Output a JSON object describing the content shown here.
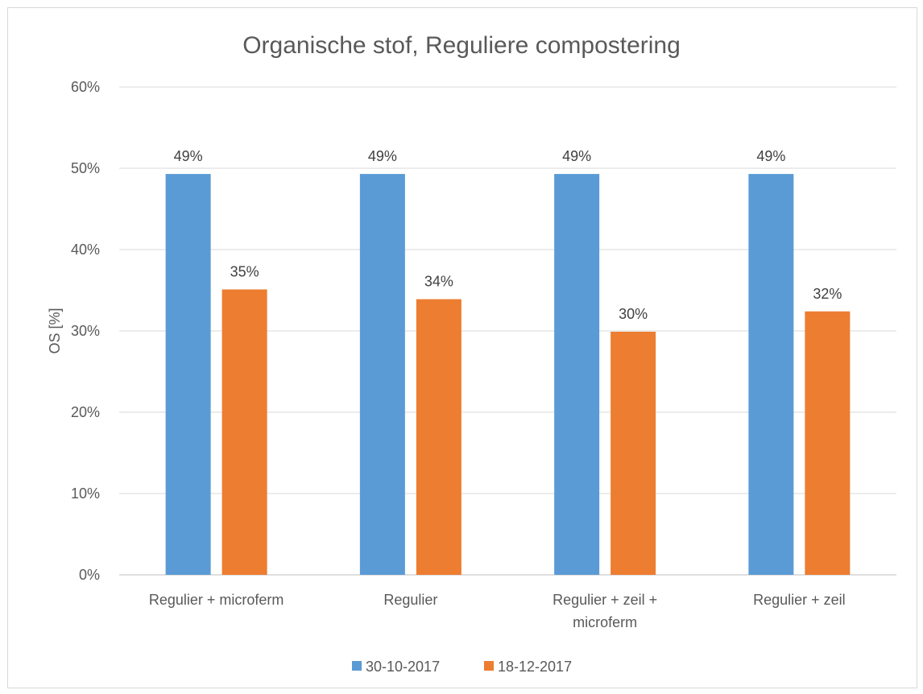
{
  "chart_data": {
    "type": "bar",
    "title": "Organische stof, Reguliere compostering",
    "ylabel": "OS [%]",
    "xlabel": "",
    "ylim": [
      0,
      60
    ],
    "yticks": [
      "0%",
      "10%",
      "20%",
      "30%",
      "40%",
      "50%",
      "60%"
    ],
    "categories": [
      [
        "Regulier + microferm"
      ],
      [
        "Regulier"
      ],
      [
        "Regulier + zeil +",
        "microferm"
      ],
      [
        "Regulier + zeil"
      ]
    ],
    "series": [
      {
        "name": "30-10-2017",
        "color": "#5b9bd5",
        "values": [
          49.3,
          49.3,
          49.3,
          49.3
        ],
        "labels": [
          "49%",
          "49%",
          "49%",
          "49%"
        ]
      },
      {
        "name": "18-12-2017",
        "color": "#ed7d31",
        "values": [
          35.1,
          33.9,
          29.9,
          32.4
        ],
        "labels": [
          "35%",
          "34%",
          "30%",
          "32%"
        ]
      }
    ],
    "grid": true,
    "legend_position": "bottom"
  }
}
